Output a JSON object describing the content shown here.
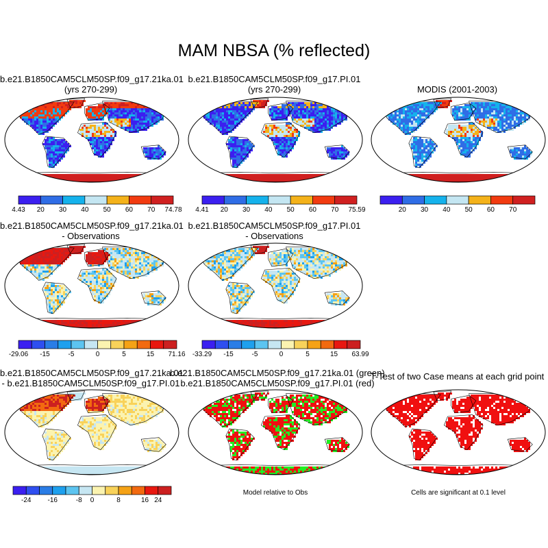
{
  "title": "MAM NBSA (% reflected)",
  "colors": {
    "abs": [
      "#3b1ff0",
      "#2f6de6",
      "#15b2ec",
      "#c4e6f2",
      "#f4b21a",
      "#f23b10",
      "#d02020"
    ],
    "diff": [
      "#3b1ff0",
      "#2f4ff0",
      "#2a7de6",
      "#1ea0ee",
      "#5cc4f0",
      "#c6e6f2",
      "#fbf3b0",
      "#f8d25a",
      "#f5a216",
      "#f26a10",
      "#e81810",
      "#cc2020"
    ],
    "sig_red": "#f01010",
    "sig_green": "#22ee22"
  },
  "chart_data": [
    {
      "type": "heatmap",
      "panel": "p1",
      "title_line1": "b.e21.B1850CAM5CLM50SP.f09_g17.21ka.01",
      "title_line2": "(yrs 270-299)",
      "colorbar_labels": [
        "4.43",
        "20",
        "30",
        "40",
        "50",
        "60",
        "70",
        "74.78"
      ],
      "min": 4.43,
      "max": 74.78,
      "levels": [
        20,
        30,
        40,
        50,
        60,
        70
      ]
    },
    {
      "type": "heatmap",
      "panel": "p2",
      "title_line1": "b.e21.B1850CAM5CLM50SP.f09_g17.PI.01",
      "title_line2": "(yrs 270-299)",
      "colorbar_labels": [
        "4.41",
        "20",
        "30",
        "40",
        "50",
        "60",
        "70",
        "75.59"
      ],
      "min": 4.41,
      "max": 75.59,
      "levels": [
        20,
        30,
        40,
        50,
        60,
        70
      ]
    },
    {
      "type": "heatmap",
      "panel": "p3",
      "title_line1": "MODIS (2001-2003)",
      "title_line2": "",
      "colorbar_labels": [
        "20",
        "30",
        "40",
        "50",
        "60",
        "70"
      ],
      "levels": [
        20,
        30,
        40,
        50,
        60,
        70
      ]
    },
    {
      "type": "heatmap",
      "panel": "p4",
      "title_line1": "b.e21.B1850CAM5CLM50SP.f09_g17.21ka.01",
      "title_line2": "- Observations",
      "colorbar_labels": [
        "-29.06",
        "-15",
        "-5",
        "0",
        "5",
        "15",
        "71.16"
      ],
      "min": -29.06,
      "max": 71.16
    },
    {
      "type": "heatmap",
      "panel": "p5",
      "title_line1": "b.e21.B1850CAM5CLM50SP.f09_g17.PI.01",
      "title_line2": "- Observations",
      "colorbar_labels": [
        "-33.29",
        "-15",
        "-5",
        "0",
        "5",
        "15",
        "63.99"
      ],
      "min": -33.29,
      "max": 63.99
    },
    {
      "type": "heatmap",
      "panel": "p6",
      "title_line1": "b.e21.B1850CAM5CLM50SP.f09_g17.21ka.01",
      "title_line2": "- b.e21.B1850CAM5CLM50SP.f09_g17.PI.01",
      "colorbar_labels": [
        "-24",
        "-16",
        "-8",
        "0",
        "8",
        "16",
        "24"
      ],
      "levels": [
        -24,
        -16,
        -8,
        0,
        8,
        16,
        24
      ]
    },
    {
      "type": "heatmap",
      "panel": "p7",
      "title_line1": "b.e21.B1850CAM5CLM50SP.f09_g17.21ka.01 (green)",
      "title_line2": "b.e21.B1850CAM5CLM50SP.f09_g17.PI.01 (red)",
      "note": "Model relative to Obs"
    },
    {
      "type": "heatmap",
      "panel": "p8",
      "title_line1": "T-Test of two Case means at each grid point",
      "title_line2": "",
      "note": "Cells are significant at 0.1 level"
    }
  ]
}
